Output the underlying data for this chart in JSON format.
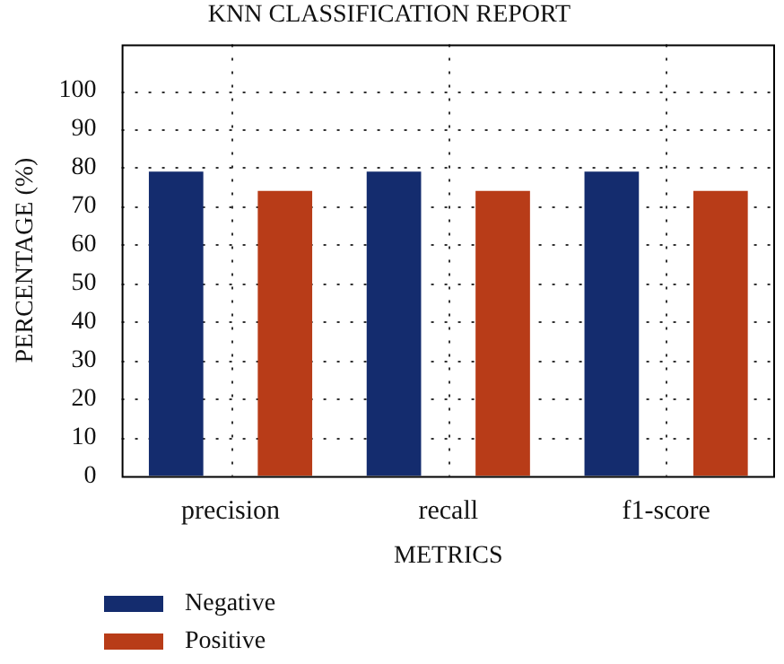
{
  "chart_data": {
    "type": "bar",
    "title": "KNN CLASSIFICATION REPORT",
    "xlabel": "METRICS",
    "ylabel": "PERCENTAGE (%)",
    "categories": [
      "precision",
      "recall",
      "f1-score"
    ],
    "series": [
      {
        "name": "Negative",
        "color": "#142c6e",
        "values": [
          79,
          79,
          79
        ]
      },
      {
        "name": "Positive",
        "color": "#b83c18",
        "values": [
          74,
          74,
          74
        ]
      }
    ],
    "ylim": [
      0,
      112
    ],
    "yticks": [
      0,
      10,
      20,
      30,
      40,
      50,
      60,
      70,
      80,
      90,
      100
    ],
    "grid": true,
    "legend": "bottom left"
  }
}
